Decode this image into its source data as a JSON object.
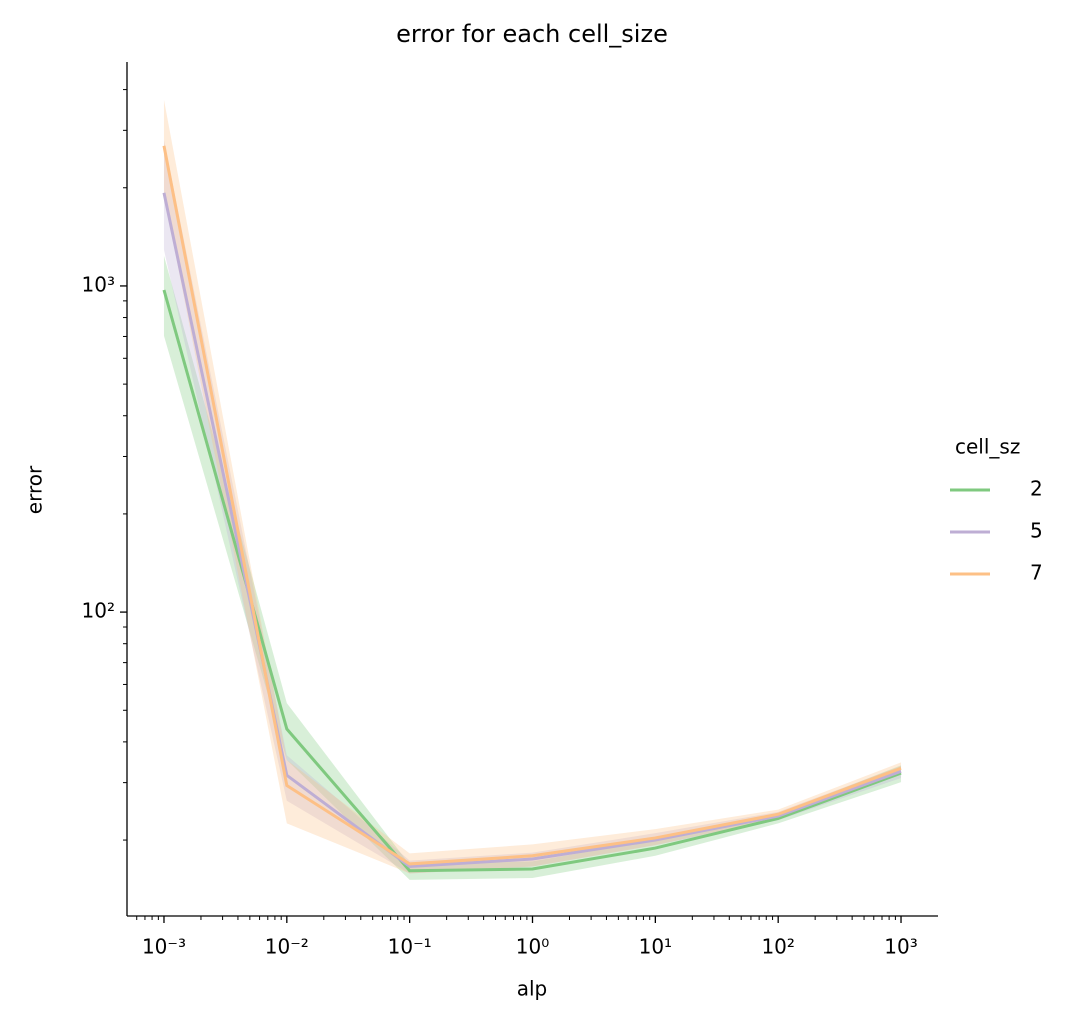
{
  "chart_data": {
    "type": "line",
    "title": "error for each cell_size",
    "xlabel": "alp",
    "ylabel": "error",
    "x": [
      0.001,
      0.01,
      0.1,
      1,
      10,
      100,
      1000
    ],
    "xscale": "log",
    "yscale": "log",
    "log_minor_ticks": true,
    "xlim": [
      0.0005,
      2000
    ],
    "ylim": [
      11.7,
      4860
    ],
    "xticks": [
      {
        "value": 0.001,
        "label": "10⁻³"
      },
      {
        "value": 0.01,
        "label": "10⁻²"
      },
      {
        "value": 0.1,
        "label": "10⁻¹"
      },
      {
        "value": 1,
        "label": "10⁰"
      },
      {
        "value": 10,
        "label": "10¹"
      },
      {
        "value": 100,
        "label": "10²"
      },
      {
        "value": 1000,
        "label": "10³"
      }
    ],
    "yticks": [
      {
        "value": 100,
        "label": "10²"
      },
      {
        "value": 1000,
        "label": "10³"
      }
    ],
    "legend_title": "cell_sz",
    "legend": "right",
    "series": [
      {
        "name": "2",
        "color": "#7fc97f",
        "values": [
          972,
          43.8,
          16.1,
          16.3,
          18.9,
          23.3,
          32.1
        ],
        "lower": [
          703,
          35.2,
          15.1,
          15.3,
          17.9,
          22.5,
          30.1
        ],
        "upper": [
          1236,
          52.6,
          16.8,
          17.2,
          20.0,
          24.1,
          33.9
        ]
      },
      {
        "name": "5",
        "color": "#beaed4",
        "values": [
          1930,
          31.6,
          16.6,
          17.5,
          20.0,
          23.7,
          32.5
        ],
        "lower": [
          1290,
          26.4,
          15.8,
          16.6,
          19.3,
          23.0,
          31.0
        ],
        "upper": [
          2800,
          36.4,
          17.3,
          18.3,
          21.0,
          24.4,
          33.7
        ]
      },
      {
        "name": "7",
        "color": "#fdc086",
        "values": [
          2690,
          29.4,
          16.9,
          17.9,
          20.3,
          24.0,
          33.2
        ],
        "lower": [
          1900,
          22.5,
          15.8,
          16.6,
          19.3,
          23.3,
          31.9
        ],
        "upper": [
          3720,
          35.2,
          18.2,
          19.4,
          21.6,
          24.8,
          34.6
        ]
      }
    ]
  }
}
